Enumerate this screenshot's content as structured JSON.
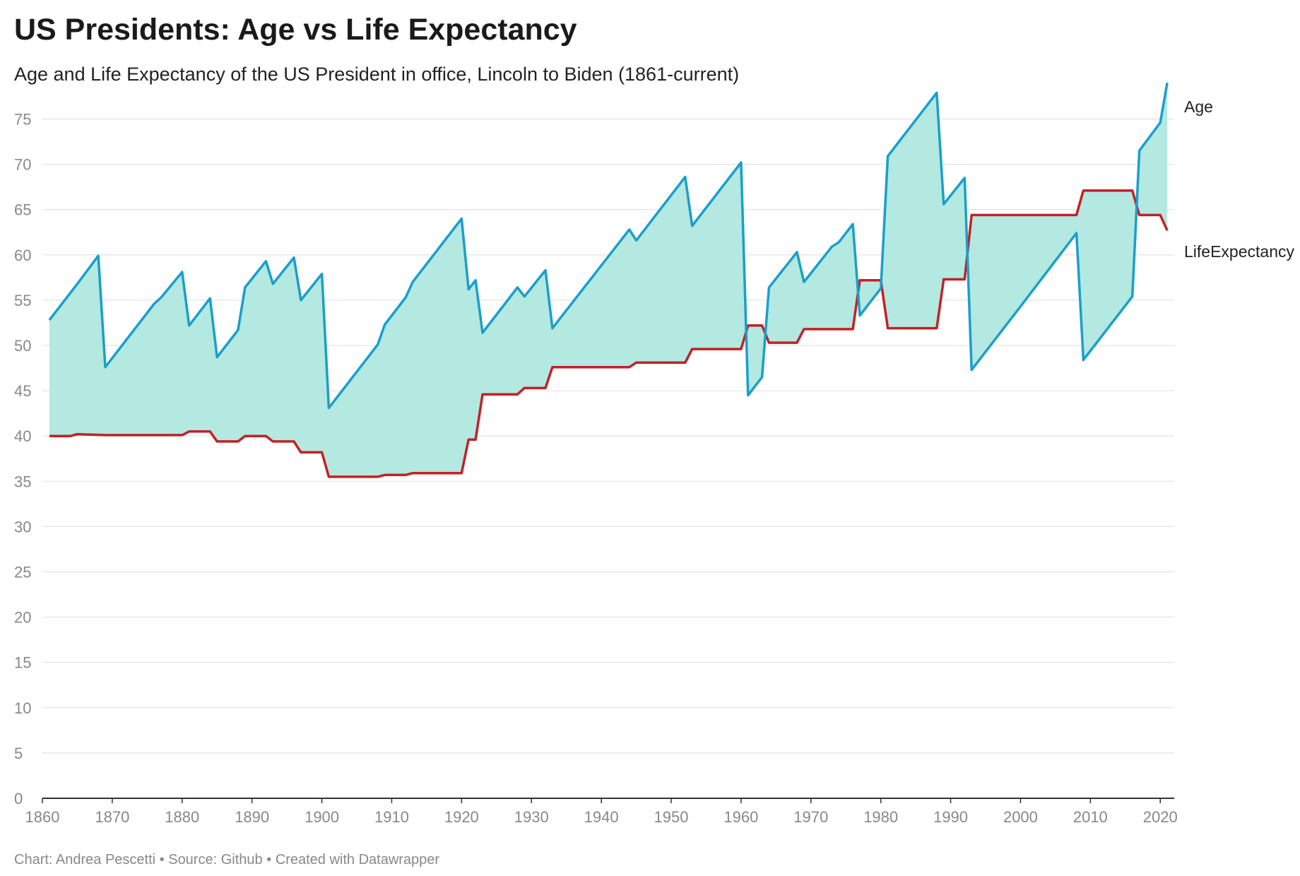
{
  "header": {
    "title": "US Presidents: Age vs Life Expectancy",
    "subtitle": "Age and Life Expectancy of the US President in office, Lincoln to Biden (1861-current)"
  },
  "footer": {
    "text": "Chart: Andrea Pescetti • Source: Github • Created with Datawrapper"
  },
  "chart_data": {
    "type": "area",
    "title": "US Presidents: Age vs Life Expectancy",
    "subtitle": "Age and Life Expectancy of the US President in office, Lincoln to Biden (1861-current)",
    "xlabel": "",
    "ylabel": "",
    "xlim": [
      1860,
      2022
    ],
    "ylim": [
      0,
      78
    ],
    "x_ticks": [
      1860,
      1870,
      1880,
      1890,
      1900,
      1910,
      1920,
      1930,
      1940,
      1950,
      1960,
      1970,
      1980,
      1990,
      2000,
      2010,
      2020
    ],
    "y_ticks": [
      0,
      5,
      10,
      15,
      20,
      25,
      30,
      35,
      40,
      45,
      50,
      55,
      60,
      65,
      70,
      75
    ],
    "grid": true,
    "fill_between_series": true,
    "colors": {
      "age": "#1a9fcc",
      "life": "#c42026",
      "fill": "#b3e9e0",
      "grid": "#dddddd",
      "axis": "#333333",
      "tick_text": "#888888"
    },
    "series": [
      {
        "name": "Age",
        "points": [
          [
            1861,
            52.8
          ],
          [
            1865,
            56.8
          ],
          [
            1868,
            59.9
          ],
          [
            1869,
            47.6
          ],
          [
            1876,
            54.6
          ],
          [
            1877,
            55.3
          ],
          [
            1880,
            58.1
          ],
          [
            1881,
            52.2
          ],
          [
            1884,
            55.2
          ],
          [
            1885,
            48.7
          ],
          [
            1888,
            51.7
          ],
          [
            1889,
            56.4
          ],
          [
            1892,
            59.3
          ],
          [
            1893,
            56.8
          ],
          [
            1896,
            59.7
          ],
          [
            1897,
            55.0
          ],
          [
            1900,
            57.9
          ],
          [
            1901,
            43.1
          ],
          [
            1908,
            50.1
          ],
          [
            1909,
            52.3
          ],
          [
            1912,
            55.3
          ],
          [
            1913,
            57.0
          ],
          [
            1920,
            64.0
          ],
          [
            1921,
            56.2
          ],
          [
            1922,
            57.2
          ],
          [
            1923,
            51.4
          ],
          [
            1928,
            56.4
          ],
          [
            1929,
            55.4
          ],
          [
            1932,
            58.3
          ],
          [
            1933,
            51.9
          ],
          [
            1944,
            62.8
          ],
          [
            1945,
            61.6
          ],
          [
            1952,
            68.6
          ],
          [
            1953,
            63.2
          ],
          [
            1960,
            70.2
          ],
          [
            1961,
            44.5
          ],
          [
            1963,
            46.5
          ],
          [
            1964,
            56.4
          ],
          [
            1968,
            60.3
          ],
          [
            1969,
            57.0
          ],
          [
            1973,
            60.9
          ],
          [
            1974,
            61.4
          ],
          [
            1976,
            63.4
          ],
          [
            1977,
            53.3
          ],
          [
            1980,
            56.3
          ],
          [
            1981,
            70.9
          ],
          [
            1988,
            77.9
          ],
          [
            1989,
            65.6
          ],
          [
            1992,
            68.5
          ],
          [
            1993,
            47.3
          ],
          [
            2000,
            54.3
          ],
          [
            2008,
            62.4
          ],
          [
            2009,
            48.4
          ],
          [
            2016,
            55.4
          ],
          [
            2017,
            71.5
          ],
          [
            2020,
            74.6
          ],
          [
            2021,
            79.0
          ]
        ]
      },
      {
        "name": "LifeExpectancy",
        "points": [
          [
            1861,
            40.0
          ],
          [
            1864,
            40.0
          ],
          [
            1865,
            40.2
          ],
          [
            1869,
            40.1
          ],
          [
            1880,
            40.1
          ],
          [
            1881,
            40.5
          ],
          [
            1884,
            40.5
          ],
          [
            1885,
            39.4
          ],
          [
            1888,
            39.4
          ],
          [
            1889,
            40.0
          ],
          [
            1892,
            40.0
          ],
          [
            1893,
            39.4
          ],
          [
            1896,
            39.4
          ],
          [
            1897,
            38.2
          ],
          [
            1900,
            38.2
          ],
          [
            1901,
            35.5
          ],
          [
            1908,
            35.5
          ],
          [
            1909,
            35.7
          ],
          [
            1912,
            35.7
          ],
          [
            1913,
            35.9
          ],
          [
            1920,
            35.9
          ],
          [
            1921,
            39.6
          ],
          [
            1922,
            39.6
          ],
          [
            1923,
            44.6
          ],
          [
            1928,
            44.6
          ],
          [
            1929,
            45.3
          ],
          [
            1932,
            45.3
          ],
          [
            1933,
            47.6
          ],
          [
            1944,
            47.6
          ],
          [
            1945,
            48.1
          ],
          [
            1952,
            48.1
          ],
          [
            1953,
            49.6
          ],
          [
            1960,
            49.6
          ],
          [
            1961,
            52.2
          ],
          [
            1963,
            52.2
          ],
          [
            1964,
            50.3
          ],
          [
            1968,
            50.3
          ],
          [
            1969,
            51.8
          ],
          [
            1976,
            51.8
          ],
          [
            1977,
            57.2
          ],
          [
            1980,
            57.2
          ],
          [
            1981,
            51.9
          ],
          [
            1988,
            51.9
          ],
          [
            1989,
            57.3
          ],
          [
            1992,
            57.3
          ],
          [
            1993,
            64.4
          ],
          [
            2008,
            64.4
          ],
          [
            2009,
            67.1
          ],
          [
            2016,
            67.1
          ],
          [
            2017,
            64.4
          ],
          [
            2020,
            64.4
          ],
          [
            2021,
            62.7
          ]
        ]
      }
    ]
  }
}
